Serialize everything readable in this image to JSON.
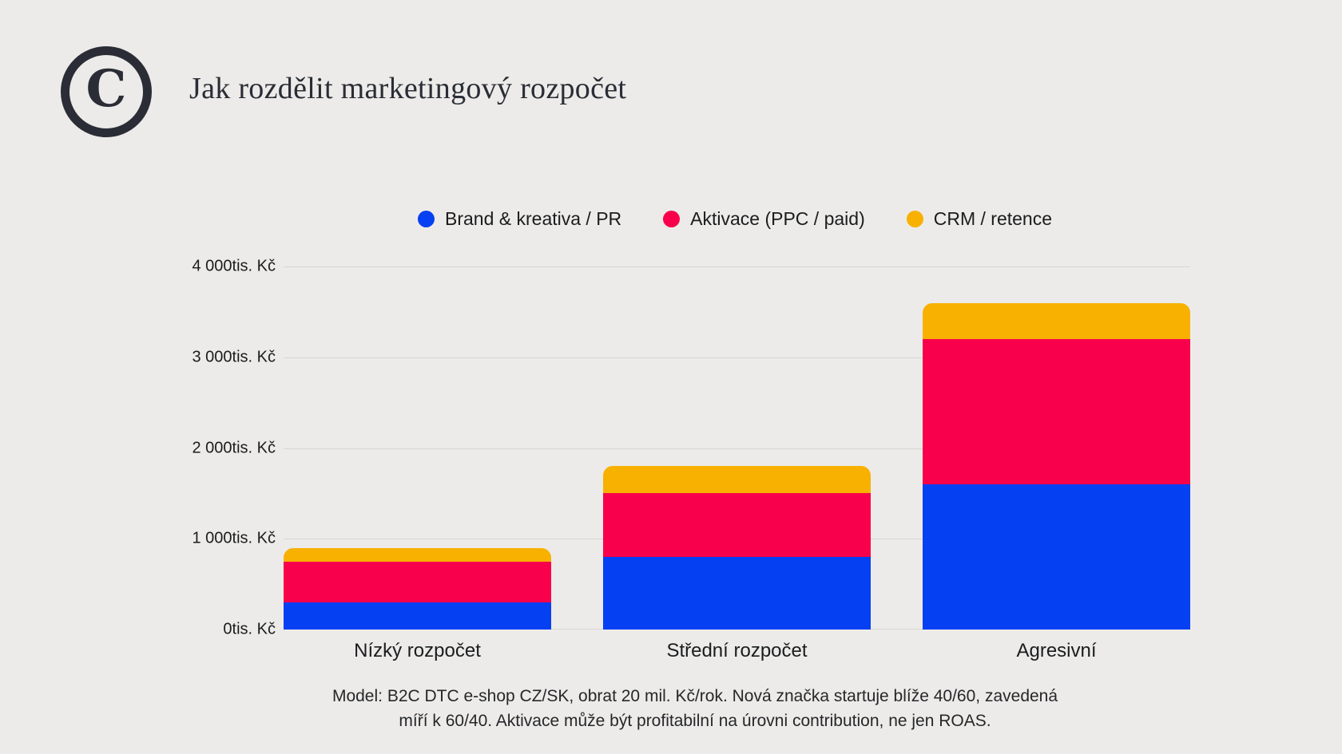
{
  "header": {
    "logo_letter": "C",
    "title": "Jak rozdělit marketingový rozpočet"
  },
  "chart_data": {
    "type": "bar",
    "stacked": true,
    "title": "Jak rozdělit marketingový rozpočet",
    "unit": "tis. Kč",
    "categories": [
      "Nízký rozpočet",
      "Střední rozpočet",
      "Agresivní"
    ],
    "series": [
      {
        "name": "Brand & kreativa / PR",
        "color": "#0540F2",
        "values": [
          300,
          800,
          1600
        ]
      },
      {
        "name": "Aktivace (PPC / paid)",
        "color": "#F8004C",
        "values": [
          450,
          700,
          1600
        ]
      },
      {
        "name": "CRM / retence",
        "color": "#F8B100",
        "values": [
          150,
          300,
          400
        ]
      }
    ],
    "y_ticks": [
      0,
      1000,
      2000,
      3000,
      4000
    ],
    "y_tick_labels": [
      "0tis. Kč",
      "1 000tis. Kč",
      "2 000tis. Kč",
      "3 000tis. Kč",
      "4 000tis. Kč"
    ],
    "ylim": [
      0,
      4300
    ],
    "grid": true,
    "legend_position": "top"
  },
  "footer": {
    "line1": "Model: B2C DTC e-shop CZ/SK, obrat 20 mil. Kč/rok. Nová značka startuje blíže 40/60, zavedená",
    "line2": "míří k 60/40. Aktivace může být profitabilní na úrovni contribution, ne jen ROAS."
  },
  "colors": {
    "background": "#ECEBE9",
    "ink": "#2A2D35",
    "text": "#1B1C1E",
    "gridline": "#D8D6D3"
  }
}
